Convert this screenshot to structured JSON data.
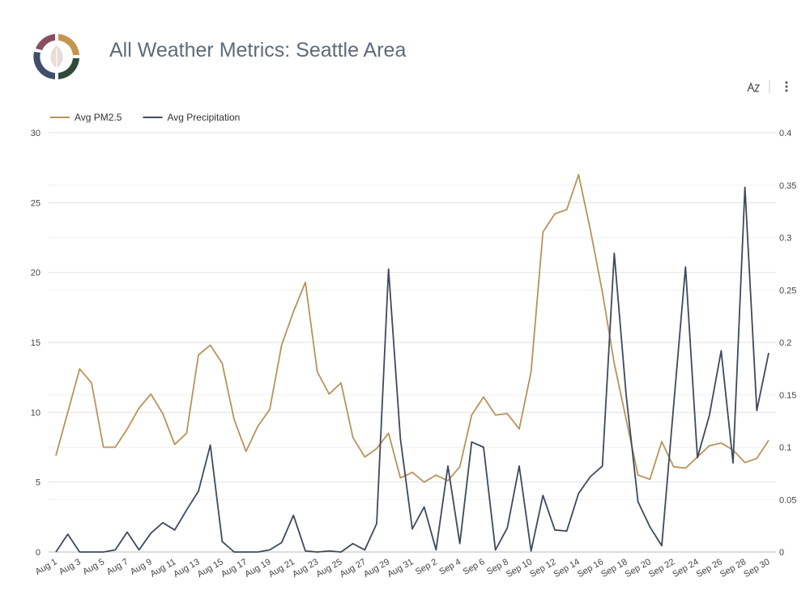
{
  "chart_data": {
    "type": "line",
    "title": "All Weather Metrics: Seattle Area",
    "categories": [
      "Aug 1",
      null,
      "Aug 3",
      null,
      "Aug 5",
      null,
      "Aug 7",
      null,
      "Aug 9",
      null,
      "Aug 11",
      null,
      "Aug 13",
      null,
      "Aug 15",
      null,
      "Aug 17",
      null,
      "Aug 19",
      null,
      "Aug 21",
      null,
      "Aug 23",
      null,
      "Aug 25",
      null,
      "Aug 27",
      null,
      "Aug 29",
      null,
      "Aug 31",
      null,
      "Sep 2",
      null,
      "Sep 4",
      null,
      "Sep 6",
      null,
      "Sep 8",
      null,
      "Sep 10",
      null,
      "Sep 12",
      null,
      "Sep 14",
      null,
      "Sep 16",
      null,
      "Sep 18",
      null,
      "Sep 20",
      null,
      "Sep 22",
      null,
      "Sep 24",
      null,
      "Sep 26",
      null,
      "Sep 28",
      null,
      "Sep 30"
    ],
    "series": [
      {
        "name": "Avg PM2.5",
        "color": "#b8935a",
        "axis": "y",
        "values": [
          6.9,
          10.0,
          13.1,
          12.1,
          7.5,
          7.5,
          8.8,
          10.3,
          11.3,
          9.9,
          7.7,
          8.5,
          14.1,
          14.8,
          13.5,
          9.5,
          7.2,
          9.0,
          10.2,
          14.8,
          17.2,
          19.3,
          12.9,
          11.3,
          12.1,
          8.2,
          6.8,
          7.4,
          8.5,
          5.3,
          5.7,
          5.0,
          5.5,
          5.1,
          6.1,
          9.8,
          11.1,
          9.8,
          9.9,
          8.8,
          12.9,
          22.9,
          24.2,
          24.5,
          27.0,
          23.0,
          18.6,
          13.5,
          9.5,
          5.5,
          5.2,
          7.9,
          6.1,
          6.0,
          6.8,
          7.6,
          7.8,
          7.3,
          6.4,
          6.7,
          8.0
        ]
      },
      {
        "name": "Avg Precipitation",
        "color": "#3d4a5c",
        "axis": "y2",
        "values": [
          0,
          0.017,
          0,
          0,
          0,
          0.002,
          0.019,
          0.002,
          0.018,
          0.028,
          0.021,
          0.04,
          0.058,
          0.102,
          0.01,
          0,
          0,
          0,
          0.002,
          0.009,
          0.035,
          0.001,
          0,
          0.001,
          0,
          0.008,
          0.002,
          0.027,
          0.27,
          0.108,
          0.022,
          0.043,
          0.002,
          0.082,
          0.008,
          0.105,
          0.1,
          0.002,
          0.023,
          0.082,
          0.001,
          0.054,
          0.021,
          0.02,
          0.056,
          0.072,
          0.082,
          0.285,
          0.15,
          0.048,
          0.024,
          0.006,
          0.14,
          0.272,
          0.09,
          0.13,
          0.192,
          0.085,
          0.348,
          0.135,
          0.19
        ]
      }
    ],
    "ylim": [
      0,
      30
    ],
    "yticks": [
      0,
      5,
      10,
      15,
      20,
      25,
      30
    ],
    "y2lim": [
      0,
      0.4
    ],
    "y2ticks": [
      0,
      0.05,
      0.1,
      0.15,
      0.2,
      0.25,
      0.3,
      0.35,
      0.4
    ],
    "grid": true,
    "legend": "top-left"
  }
}
